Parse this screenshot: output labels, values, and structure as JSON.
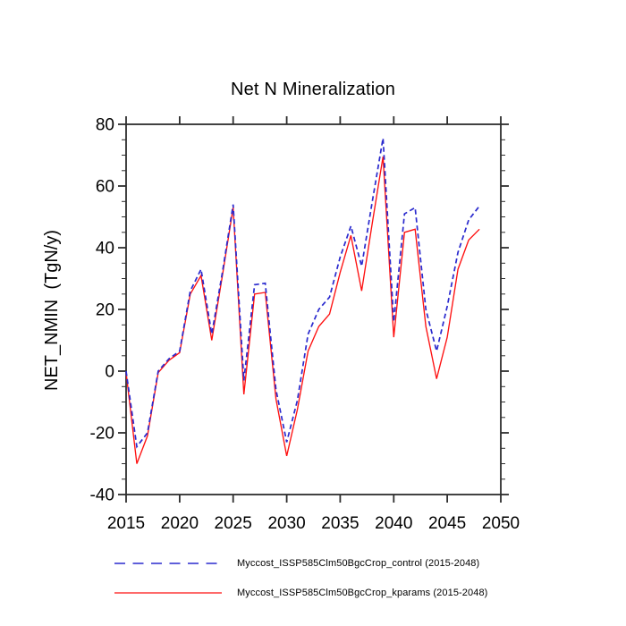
{
  "figure": {
    "title": "Net N Mineralization",
    "ylabel": "NET_NMIN  (TgN/y)"
  },
  "chart_data": {
    "type": "line",
    "title": "Net N Mineralization",
    "xlabel": "",
    "ylabel": "NET_NMIN (TgN/y)",
    "xlim": [
      2015,
      2050
    ],
    "ylim": [
      -40,
      80
    ],
    "x_major_ticks": [
      2015,
      2020,
      2025,
      2030,
      2035,
      2040,
      2045,
      2050
    ],
    "y_major_ticks": [
      -40,
      -20,
      0,
      20,
      40,
      60,
      80
    ],
    "y_minor_step": 5,
    "grid": false,
    "legend_position": "bottom",
    "x": [
      2015,
      2016,
      2017,
      2018,
      2019,
      2020,
      2021,
      2022,
      2023,
      2024,
      2025,
      2026,
      2027,
      2028,
      2029,
      2030,
      2031,
      2032,
      2033,
      2034,
      2035,
      2036,
      2037,
      2038,
      2039,
      2040,
      2041,
      2042,
      2043,
      2044,
      2045,
      2046,
      2047,
      2048
    ],
    "series": [
      {
        "name": "Myccost_ISSP585Clm50BgcCrop_control (2015-2048)",
        "color": "#2a2ace",
        "style": "dashed",
        "values": [
          0,
          -24.5,
          -20,
          0,
          4,
          6.5,
          26,
          33,
          12,
          32,
          54,
          -3,
          28,
          28.5,
          -6,
          -23,
          -9.5,
          12,
          20,
          24,
          37,
          47,
          34,
          55,
          75.5,
          16,
          51,
          53,
          20,
          6.5,
          21,
          38.5,
          49,
          53.5
        ]
      },
      {
        "name": "Myccost_ISSP585Clm50BgcCrop_kparams (2015-2048)",
        "color": "#fe1010",
        "style": "solid",
        "values": [
          -0.5,
          -30,
          -21,
          -0.5,
          3.5,
          6,
          25,
          31,
          10,
          31,
          53,
          -7.5,
          25,
          25.5,
          -9,
          -27.5,
          -12.5,
          6.5,
          14.5,
          18.5,
          32,
          44,
          26,
          48,
          69.5,
          11,
          45,
          46,
          14.5,
          -2.5,
          11,
          33,
          42.5,
          46
        ]
      }
    ]
  },
  "colors": {
    "axis": "#2e2e2e",
    "tick_label": "#000000"
  }
}
